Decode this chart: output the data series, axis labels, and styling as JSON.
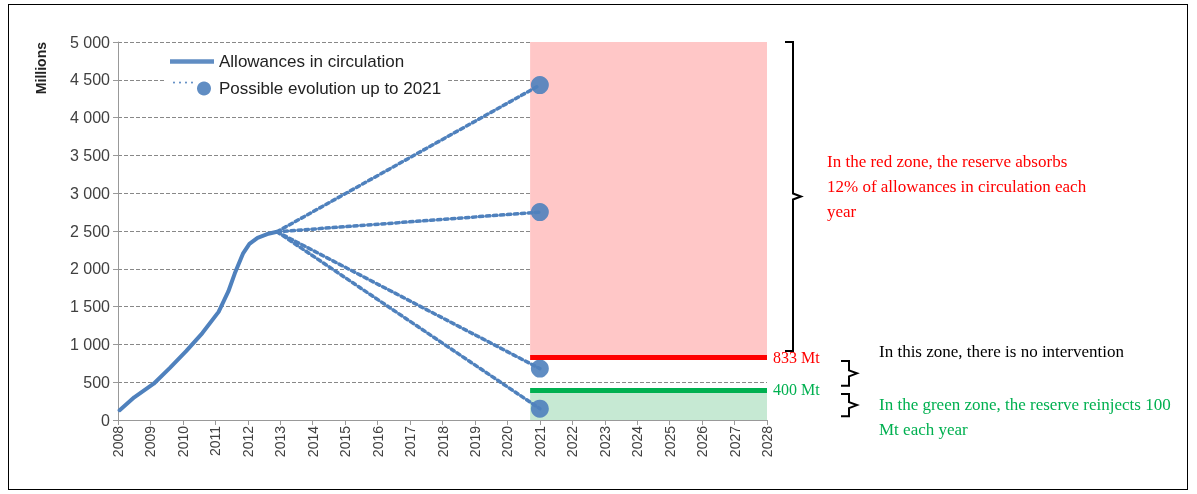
{
  "chart_data": {
    "type": "line",
    "ylabel": "Millions",
    "xlim": [
      2008,
      2028
    ],
    "xticks": [
      2008,
      2009,
      2010,
      2011,
      2012,
      2013,
      2014,
      2015,
      2016,
      2017,
      2018,
      2019,
      2020,
      2021,
      2022,
      2023,
      2024,
      2025,
      2026,
      2027,
      2028
    ],
    "ylim": [
      0,
      5000
    ],
    "yticks": [
      {
        "value": 0,
        "label": "0"
      },
      {
        "value": 500,
        "label": "500"
      },
      {
        "value": 1000,
        "label": "1 000"
      },
      {
        "value": 1500,
        "label": "1 500"
      },
      {
        "value": 2000,
        "label": "2 000"
      },
      {
        "value": 2500,
        "label": "2 500"
      },
      {
        "value": 3000,
        "label": "3 000"
      },
      {
        "value": 3500,
        "label": "3 500"
      },
      {
        "value": 4000,
        "label": "4 000"
      },
      {
        "value": 4500,
        "label": "4 500"
      },
      {
        "value": 5000,
        "label": "5 000"
      }
    ],
    "grid": "y",
    "legend": "top left",
    "series": [
      {
        "name": "Allowances in circulation",
        "color": "#4f81bd",
        "line_style": "solid",
        "marker": "none",
        "x": [
          2008.05,
          2008.5,
          2009.1,
          2009.6,
          2010.1,
          2010.6,
          2011.1,
          2011.4,
          2011.6,
          2011.85,
          2012.05,
          2012.3,
          2012.6,
          2012.9
        ],
        "values": [
          130,
          300,
          480,
          690,
          910,
          1150,
          1430,
          1700,
          1940,
          2200,
          2330,
          2410,
          2460,
          2490
        ]
      },
      {
        "name": "Possible evolution up to 2021",
        "color": "#4f81bd",
        "line_style": "dotted",
        "marker": "circle",
        "x": [
          2012.9,
          2021
        ],
        "values": [
          2490,
          4430
        ]
      },
      {
        "color": "#4f81bd",
        "line_style": "dotted",
        "marker": "circle",
        "x": [
          2012.9,
          2021
        ],
        "values": [
          2490,
          2750
        ]
      },
      {
        "color": "#4f81bd",
        "line_style": "dotted",
        "marker": "circle",
        "x": [
          2012.9,
          2021
        ],
        "values": [
          2490,
          680
        ]
      },
      {
        "color": "#4f81bd",
        "line_style": "dotted",
        "marker": "circle",
        "x": [
          2012.9,
          2021
        ],
        "values": [
          2490,
          150
        ]
      }
    ],
    "bands": [
      {
        "axis": "y",
        "from": 833,
        "to": 5000,
        "color": "#ffc7c7"
      },
      {
        "axis": "y",
        "from": 0,
        "to": 400,
        "color": "#c6e9d3"
      }
    ],
    "ref_lines": [
      {
        "axis": "y",
        "value": 833,
        "label": "833 Mt",
        "color": "#ff0000",
        "line_style": "solid"
      },
      {
        "axis": "y",
        "value": 400,
        "label": "400 Mt",
        "color": "#00b050",
        "line_style": "solid"
      }
    ],
    "annotations": [
      "In the red zone, the reserve absorbs 12% of allowances in circulation each year",
      "In this zone, there is no intervention",
      "In the green zone, the reserve reinjects 100 Mt each year"
    ]
  }
}
